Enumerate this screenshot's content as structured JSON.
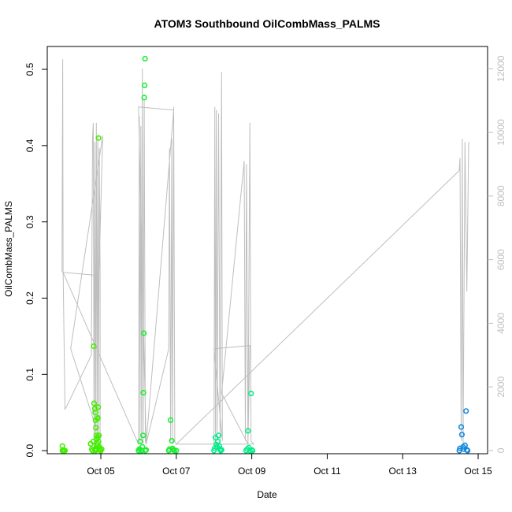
{
  "chart_data": {
    "type": "scatter",
    "title": "ATOM3 Southbound OilCombMass_PALMS",
    "xlabel": "Date",
    "ylabel": "OilCombMass_PALMS",
    "xlim": [
      3.58,
      15.25
    ],
    "ylim": [
      -0.004,
      0.53
    ],
    "y2lim": [
      -100,
      12700
    ],
    "x_ticks": [
      5,
      7,
      9,
      11,
      13,
      15
    ],
    "x_tick_labels": [
      "Oct 05",
      "Oct 07",
      "Oct 09",
      "Oct 11",
      "Oct 13",
      "Oct 15"
    ],
    "y_ticks": [
      0.0,
      0.1,
      0.2,
      0.3,
      0.4,
      0.5
    ],
    "y_tick_labels": [
      "0.0",
      "0.1",
      "0.2",
      "0.3",
      "0.4",
      "0.5"
    ],
    "y2_ticks": [
      0,
      2000,
      4000,
      6000,
      8000,
      10000,
      12000
    ],
    "y2_tick_labels": [
      "0",
      "2000",
      "4000",
      "6000",
      "8000",
      "10000",
      "12000"
    ],
    "altitude_color": "#bebebe",
    "axis_color": "#000000",
    "altitude_line": [
      [
        3.97,
        5600
      ],
      [
        3.99,
        12300
      ],
      [
        4.0,
        5700
      ],
      [
        4.05,
        1300
      ],
      [
        4.1,
        1400
      ],
      [
        4.75,
        3000
      ],
      [
        4.78,
        9800
      ],
      [
        4.8,
        10300
      ],
      [
        4.82,
        100
      ],
      [
        4.84,
        9700
      ],
      [
        4.86,
        300
      ],
      [
        4.88,
        10300
      ],
      [
        4.9,
        200
      ],
      [
        4.92,
        9900
      ],
      [
        4.94,
        300
      ],
      [
        4.96,
        9500
      ],
      [
        4.98,
        5500
      ],
      [
        4.98,
        200
      ],
      [
        5.0,
        250
      ],
      [
        4.2,
        3200
      ],
      [
        5.05,
        9900
      ],
      [
        4.95,
        5500
      ],
      [
        4.0,
        5600
      ],
      [
        6.0,
        200
      ],
      [
        6.02,
        10500
      ],
      [
        6.04,
        200
      ],
      [
        6.06,
        10200
      ],
      [
        6.08,
        300
      ],
      [
        6.1,
        12000
      ],
      [
        6.12,
        200
      ],
      [
        6.15,
        11000
      ],
      [
        6.18,
        300
      ],
      [
        6.2,
        200
      ],
      [
        6.0,
        10800
      ],
      [
        6.93,
        10700
      ],
      [
        6.2,
        200
      ],
      [
        6.8,
        3200
      ],
      [
        6.82,
        9500
      ],
      [
        6.85,
        300
      ],
      [
        6.88,
        9800
      ],
      [
        6.9,
        200
      ],
      [
        6.93,
        10800
      ],
      [
        6.96,
        300
      ],
      [
        7.0,
        200
      ],
      [
        8.0,
        200
      ],
      [
        8.02,
        10800
      ],
      [
        8.04,
        200
      ],
      [
        8.06,
        10700
      ],
      [
        8.08,
        300
      ],
      [
        8.12,
        10600
      ],
      [
        8.16,
        200
      ],
      [
        8.2,
        11900
      ],
      [
        8.22,
        300
      ],
      [
        8.0,
        3200
      ],
      [
        8.95,
        3300
      ],
      [
        8.9,
        200
      ],
      [
        8.2,
        1800
      ],
      [
        8.8,
        9100
      ],
      [
        8.83,
        300
      ],
      [
        8.86,
        9000
      ],
      [
        8.9,
        200
      ],
      [
        8.95,
        10300
      ],
      [
        8.98,
        300
      ],
      [
        9.05,
        200
      ],
      [
        7.0,
        200
      ],
      [
        14.5,
        8800
      ],
      [
        14.52,
        9200
      ],
      [
        14.55,
        300
      ],
      [
        14.58,
        9800
      ],
      [
        14.6,
        200
      ],
      [
        14.65,
        9700
      ],
      [
        14.7,
        5000
      ],
      [
        14.75,
        9700
      ]
    ],
    "series": [
      {
        "color": "#44ee00",
        "points": [
          [
            3.98,
            0.0
          ],
          [
            3.98,
            0.006
          ],
          [
            4.0,
            0.001
          ],
          [
            4.02,
            0.0
          ],
          [
            4.05,
            0.0
          ],
          [
            4.73,
            0.009
          ],
          [
            4.76,
            0.002
          ],
          [
            4.78,
            0.0
          ],
          [
            4.8,
            0.012
          ],
          [
            4.81,
            0.137
          ],
          [
            4.82,
            0.062
          ],
          [
            4.84,
            0.055
          ],
          [
            4.85,
            0.05
          ],
          [
            4.86,
            0.04
          ],
          [
            4.87,
            0.03
          ],
          [
            4.88,
            0.02
          ],
          [
            4.89,
            0.015
          ],
          [
            4.9,
            0.01
          ],
          [
            4.91,
            0.042
          ],
          [
            4.92,
            0.043
          ],
          [
            4.93,
            0.057
          ],
          [
            4.94,
            0.41
          ],
          [
            4.95,
            0.02
          ],
          [
            4.96,
            0.005
          ],
          [
            4.97,
            0.003
          ],
          [
            4.98,
            0.001
          ],
          [
            4.99,
            0.0
          ],
          [
            5.0,
            0.0
          ],
          [
            5.02,
            0.002
          ],
          [
            4.84,
            0.001
          ],
          [
            4.86,
            0.0
          ],
          [
            4.88,
            0.003
          ],
          [
            4.9,
            0.007
          ],
          [
            4.92,
            0.018
          ],
          [
            4.94,
            0.012
          ]
        ]
      },
      {
        "color": "#1aee33",
        "points": [
          [
            6.0,
            0.0
          ],
          [
            6.02,
            0.002
          ],
          [
            6.04,
            0.012
          ],
          [
            6.06,
            0.001
          ],
          [
            6.08,
            0.0
          ],
          [
            6.1,
            0.005
          ],
          [
            6.12,
            0.02
          ],
          [
            6.13,
            0.076
          ],
          [
            6.14,
            0.154
          ],
          [
            6.15,
            0.463
          ],
          [
            6.16,
            0.479
          ],
          [
            6.17,
            0.514
          ],
          [
            6.18,
            0.0
          ],
          [
            6.2,
            0.001
          ],
          [
            6.8,
            0.0
          ],
          [
            6.82,
            0.002
          ],
          [
            6.85,
            0.04
          ],
          [
            6.88,
            0.013
          ],
          [
            6.9,
            0.003
          ],
          [
            6.92,
            0.001
          ],
          [
            6.95,
            0.0
          ],
          [
            7.0,
            0.0
          ]
        ]
      },
      {
        "color": "#00ee88",
        "points": [
          [
            8.0,
            0.0
          ],
          [
            8.02,
            0.003
          ],
          [
            8.04,
            0.017
          ],
          [
            8.06,
            0.008
          ],
          [
            8.08,
            0.005
          ],
          [
            8.1,
            0.012
          ],
          [
            8.12,
            0.02
          ],
          [
            8.14,
            0.006
          ],
          [
            8.16,
            0.002
          ],
          [
            8.18,
            0.0
          ],
          [
            8.2,
            0.001
          ],
          [
            8.85,
            0.0
          ],
          [
            8.88,
            0.002
          ],
          [
            8.9,
            0.026
          ],
          [
            8.92,
            0.004
          ],
          [
            8.95,
            0.0
          ],
          [
            8.98,
            0.075
          ],
          [
            9.0,
            0.001
          ],
          [
            9.02,
            0.0
          ]
        ]
      },
      {
        "color": "#1188dd",
        "points": [
          [
            14.5,
            0.0
          ],
          [
            14.52,
            0.003
          ],
          [
            14.55,
            0.031
          ],
          [
            14.57,
            0.021
          ],
          [
            14.6,
            0.005
          ],
          [
            14.62,
            0.002
          ],
          [
            14.65,
            0.007
          ],
          [
            14.68,
            0.052
          ],
          [
            14.7,
            0.001
          ],
          [
            14.72,
            0.0
          ]
        ]
      }
    ]
  }
}
